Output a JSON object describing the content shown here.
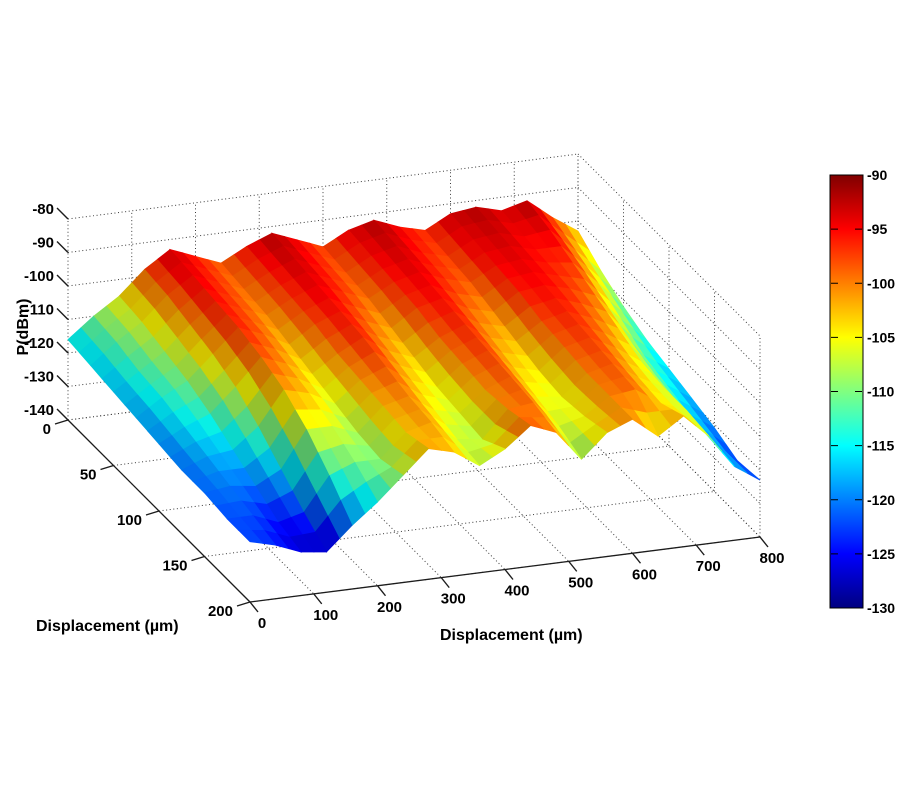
{
  "figure": {
    "background": "#ffffff"
  },
  "chart_data": {
    "type": "surface",
    "title": "",
    "xlabel": "Displacement (µm)",
    "ylabel": "Displacement (µm)",
    "zlabel": "P(dBm)",
    "xlim": [
      0,
      800
    ],
    "ylim": [
      0,
      200
    ],
    "zlim": [
      -140,
      -80
    ],
    "x_ticks": [
      0,
      100,
      200,
      300,
      400,
      500,
      600,
      700,
      800
    ],
    "y_ticks": [
      0,
      50,
      100,
      150,
      200
    ],
    "z_ticks": [
      -80,
      -90,
      -100,
      -110,
      -120,
      -130,
      -140
    ],
    "grid": true,
    "colormap": "jet",
    "clim": [
      -130,
      -90
    ],
    "colorbar_ticks": [
      -90,
      -95,
      -100,
      -105,
      -110,
      -115,
      -120,
      -125,
      -130
    ],
    "surface": {
      "x": [
        0,
        40,
        80,
        120,
        160,
        200,
        240,
        280,
        320,
        360,
        400,
        440,
        480,
        520,
        560,
        600,
        640,
        680,
        720,
        760,
        800
      ],
      "y": [
        0,
        25,
        50,
        75,
        100,
        125,
        150,
        175,
        200
      ],
      "z": [
        [
          -116,
          -110,
          -105,
          -98,
          -93,
          -96,
          -99,
          -95,
          -92,
          -95,
          -98,
          -94,
          -92,
          -95,
          -97,
          -93,
          -92,
          -94,
          -92,
          -98,
          -103
        ],
        [
          -117,
          -111,
          -106,
          -99,
          -94,
          -97,
          -100,
          -96,
          -93,
          -96,
          -99,
          -95,
          -93,
          -96,
          -98,
          -94,
          -93,
          -95,
          -94,
          -101,
          -108
        ],
        [
          -118,
          -113,
          -108,
          -101,
          -95,
          -98,
          -101,
          -97,
          -94,
          -97,
          -100,
          -96,
          -94,
          -97,
          -99,
          -95,
          -94,
          -96,
          -97,
          -104,
          -112
        ],
        [
          -119,
          -114,
          -110,
          -103,
          -96,
          -99,
          -103,
          -98,
          -95,
          -99,
          -102,
          -97,
          -95,
          -99,
          -101,
          -96,
          -95,
          -97,
          -100,
          -108,
          -115
        ],
        [
          -120,
          -116,
          -113,
          -106,
          -98,
          -101,
          -105,
          -100,
          -96,
          -101,
          -104,
          -99,
          -96,
          -101,
          -103,
          -98,
          -96,
          -99,
          -103,
          -112,
          -117
        ],
        [
          -121,
          -118,
          -117,
          -111,
          -101,
          -103,
          -107,
          -101,
          -98,
          -103,
          -106,
          -100,
          -97,
          -103,
          -105,
          -99,
          -97,
          -101,
          -106,
          -114,
          -119
        ],
        [
          -121,
          -120,
          -121,
          -117,
          -106,
          -106,
          -109,
          -102,
          -100,
          -105,
          -107,
          -101,
          -98,
          -105,
          -106,
          -100,
          -98,
          -103,
          -107,
          -116,
          -121
        ],
        [
          -122,
          -122,
          -125,
          -123,
          -113,
          -110,
          -110,
          -103,
          -101,
          -107,
          -108,
          -100,
          -99,
          -107,
          -105,
          -100,
          -99,
          -104,
          -107,
          -117,
          -124
        ],
        [
          -122,
          -124,
          -127,
          -128,
          -121,
          -115,
          -108,
          -101,
          -103,
          -108,
          -104,
          -98,
          -101,
          -110,
          -103,
          -100,
          -106,
          -101,
          -108,
          -118,
          -123
        ]
      ]
    }
  }
}
